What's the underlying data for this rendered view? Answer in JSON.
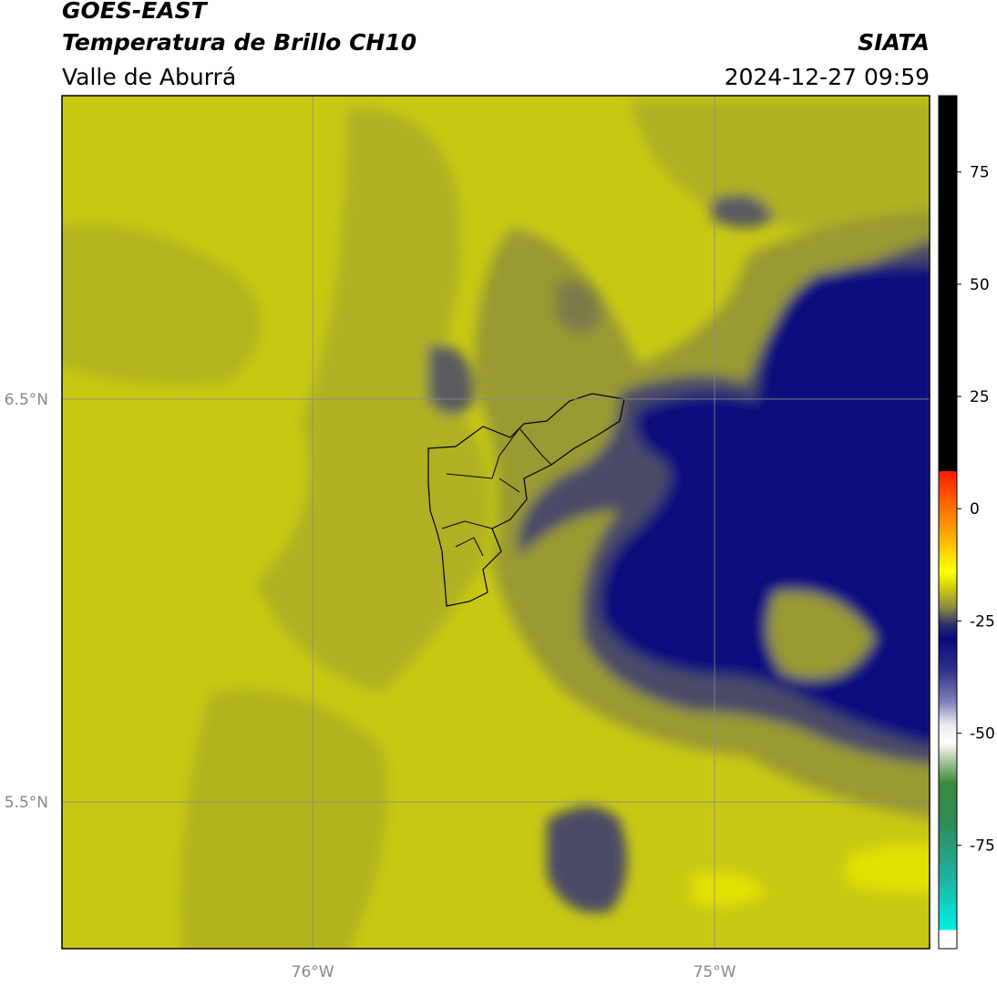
{
  "header": {
    "title": "GOES-EAST",
    "subtitle": "Temperatura de Brillo CH10",
    "region": "Valle de Aburrá",
    "source": "SIATA",
    "timestamp": "2024-12-27 09:59"
  },
  "map": {
    "xlim": [
      -76.624,
      -74.465
    ],
    "ylim": [
      5.136,
      7.253
    ],
    "xticks": [
      {
        "value": -76,
        "label": "76°W"
      },
      {
        "value": -75,
        "label": "75°W"
      }
    ],
    "yticks": [
      {
        "value": 5.5,
        "label": "5.5°N"
      },
      {
        "value": 6.5,
        "label": "6.5°N"
      }
    ],
    "grid": true
  },
  "colorbar": {
    "lim": [
      -98,
      92
    ],
    "ticks": [
      75,
      50,
      25,
      0,
      -25,
      -50,
      -75
    ],
    "stops": [
      {
        "value": 92,
        "color": "#000000"
      },
      {
        "value": 8.4,
        "color": "#000000"
      },
      {
        "value": 8.3,
        "color": "#ff1a00"
      },
      {
        "value": 2,
        "color": "#ff6000"
      },
      {
        "value": -5,
        "color": "#ffa000"
      },
      {
        "value": -10,
        "color": "#ffd800"
      },
      {
        "value": -14,
        "color": "#ffff00"
      },
      {
        "value": -18,
        "color": "#c8c813"
      },
      {
        "value": -22,
        "color": "#8a8a40"
      },
      {
        "value": -26,
        "color": "#2a2a70"
      },
      {
        "value": -29,
        "color": "#0a0a80"
      },
      {
        "value": -36,
        "color": "#30308a"
      },
      {
        "value": -43,
        "color": "#8080b8"
      },
      {
        "value": -48,
        "color": "#e8e8f0"
      },
      {
        "value": -52,
        "color": "#ffffff"
      },
      {
        "value": -56,
        "color": "#b0c8a0"
      },
      {
        "value": -61,
        "color": "#3a8a3a"
      },
      {
        "value": -70,
        "color": "#2e8b57"
      },
      {
        "value": -82,
        "color": "#20b0a0"
      },
      {
        "value": -93.8,
        "color": "#00f0e0"
      },
      {
        "value": -93.9,
        "color": "#ffffff"
      },
      {
        "value": -98,
        "color": "#ffffff"
      }
    ]
  }
}
